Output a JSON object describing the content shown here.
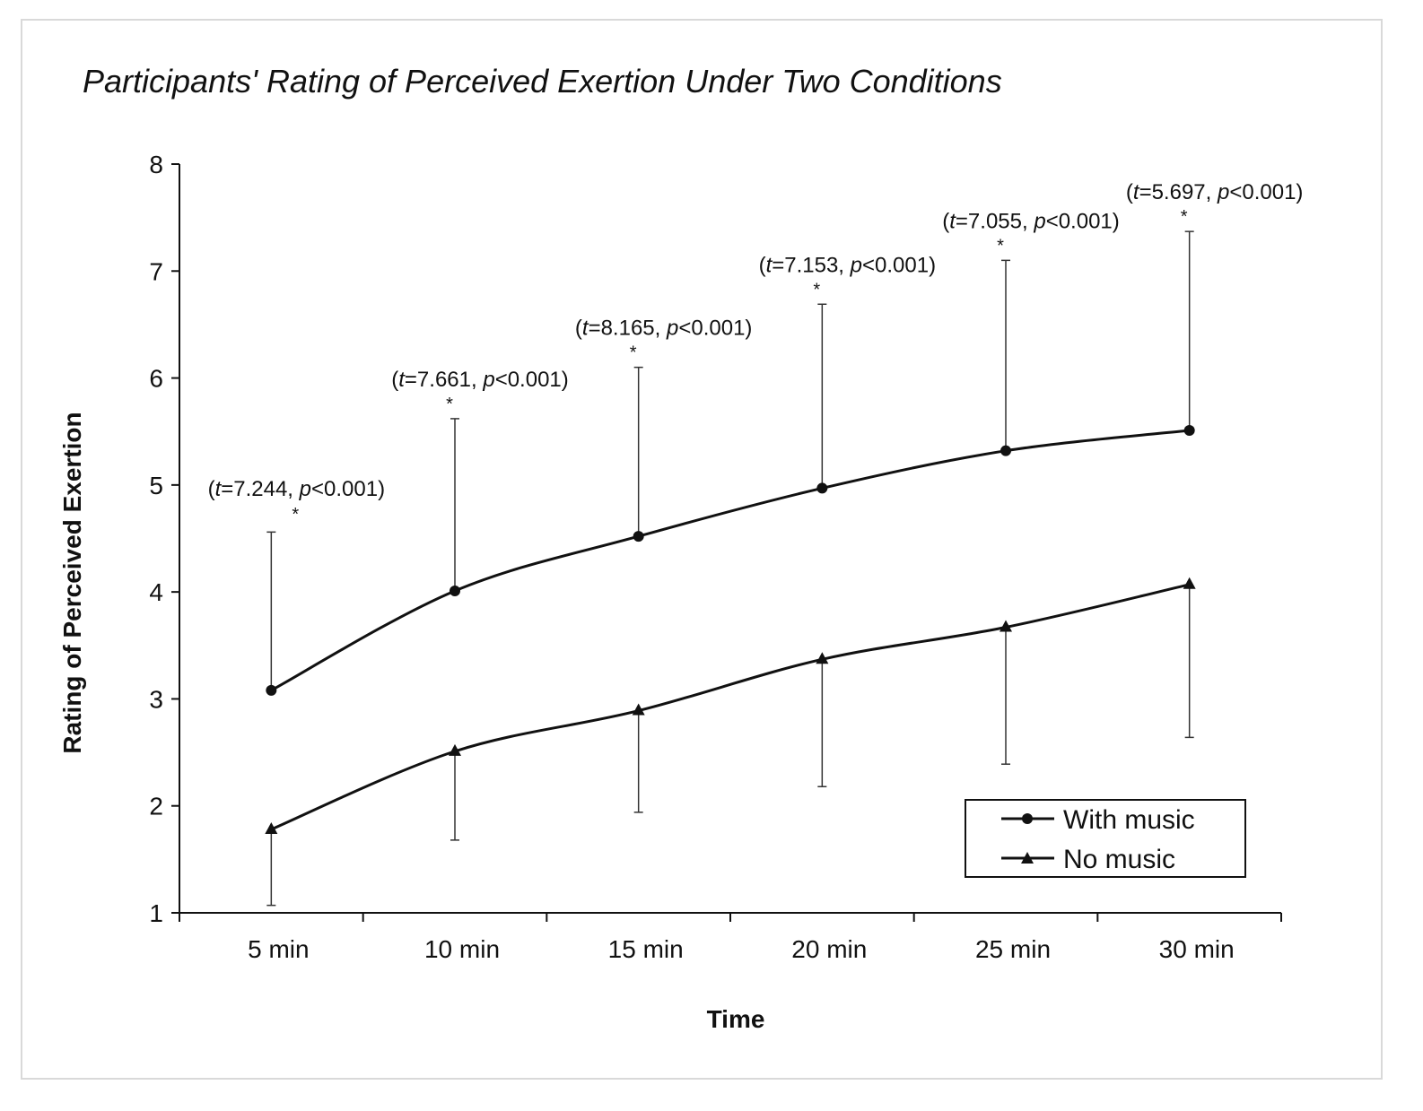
{
  "chart_data": {
    "type": "line",
    "title": "Participants' Rating of Perceived Exertion Under Two Conditions",
    "xlabel": "Time",
    "ylabel": "Rating of Perceived Exertion",
    "categories": [
      "5 min",
      "10 min",
      "15 min",
      "20 min",
      "25 min",
      "30 min"
    ],
    "ylim": [
      1,
      8
    ],
    "yticks": [
      1,
      2,
      3,
      4,
      5,
      6,
      7,
      8
    ],
    "grid": false,
    "legend_position": "bottom-right",
    "series": [
      {
        "name": "With music",
        "marker": "circle",
        "values": [
          3.08,
          4.01,
          4.52,
          4.97,
          5.32,
          5.51
        ],
        "error_upper": [
          4.56,
          5.62,
          6.1,
          6.69,
          7.1,
          7.37
        ]
      },
      {
        "name": "No music",
        "marker": "triangle",
        "values": [
          1.78,
          2.51,
          2.89,
          3.37,
          3.67,
          4.07
        ],
        "error_lower": [
          1.07,
          1.68,
          1.94,
          2.18,
          2.39,
          2.64
        ]
      }
    ],
    "annotations": [
      {
        "t": "7.244",
        "p": "<0.001",
        "star": "*"
      },
      {
        "t": "7.661",
        "p": "<0.001",
        "star": "*"
      },
      {
        "t": "8.165",
        "p": "<0.001",
        "star": "*"
      },
      {
        "t": "7.153",
        "p": "<0.001",
        "star": "*"
      },
      {
        "t": "7.055",
        "p": "<0.001",
        "star": "*"
      },
      {
        "t": "5.697",
        "p": "<0.001",
        "star": "*"
      }
    ]
  }
}
